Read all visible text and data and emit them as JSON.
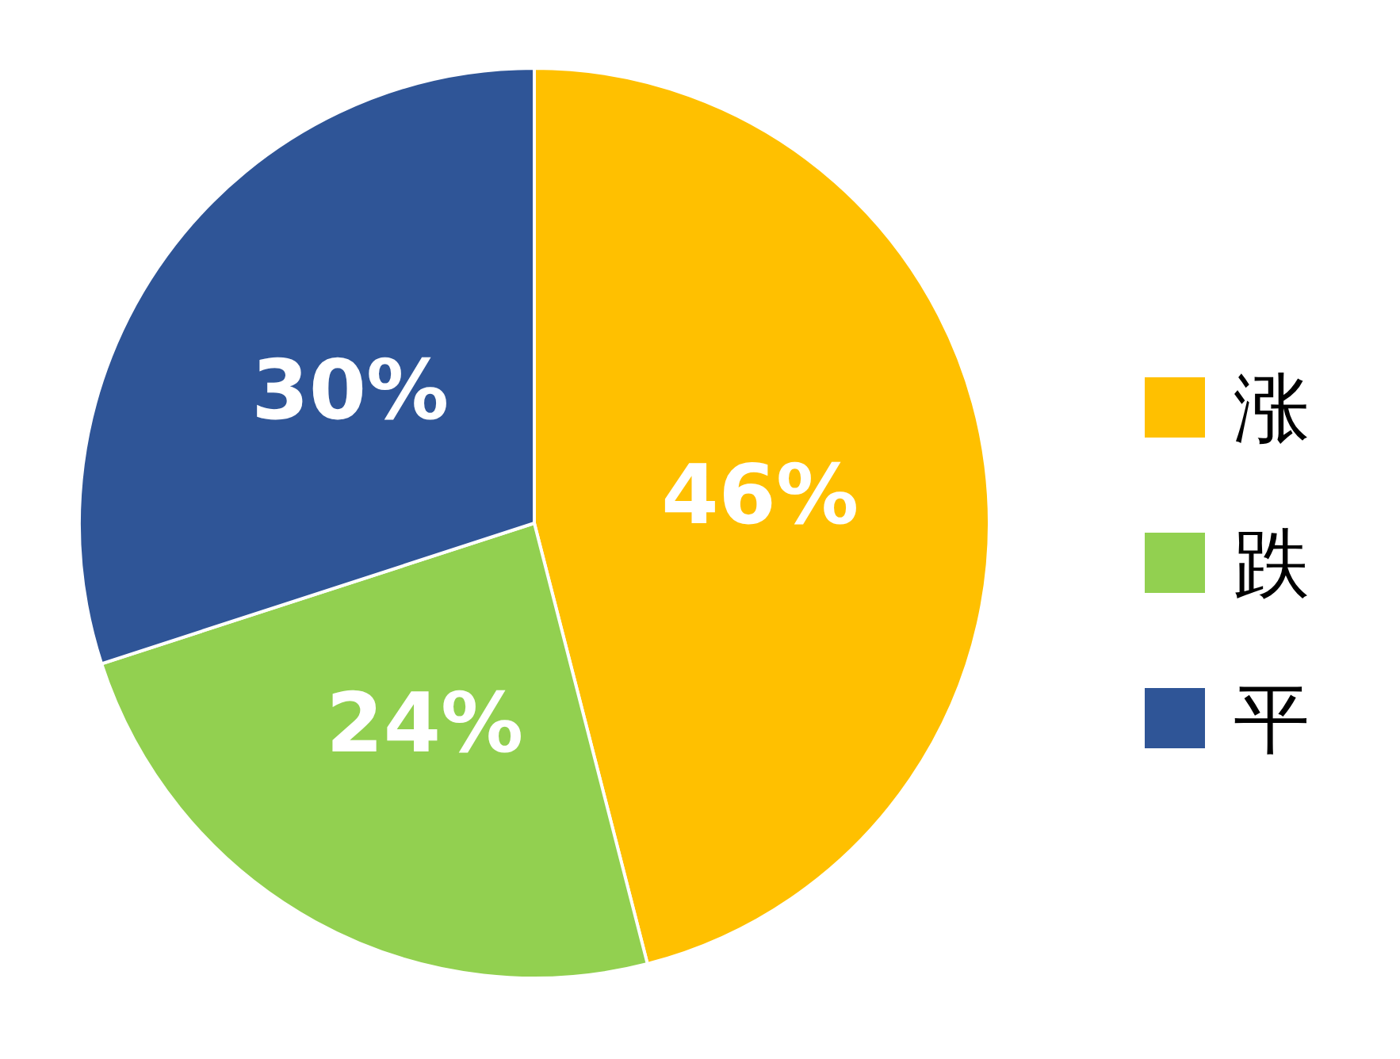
{
  "chart_data": {
    "type": "pie",
    "categories": [
      "涨",
      "跌",
      "平"
    ],
    "values": [
      46,
      24,
      30
    ],
    "colors": [
      "#ffc000",
      "#92d050",
      "#2f5597"
    ],
    "value_labels": [
      "46%",
      "24%",
      "30%"
    ],
    "legend": "right"
  }
}
